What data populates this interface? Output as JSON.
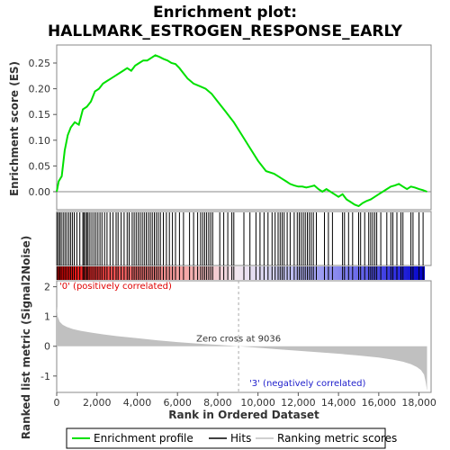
{
  "chart_data": {
    "type": "line",
    "title_line1": "Enrichment plot:",
    "title_line2": "HALLMARK_ESTROGEN_RESPONSE_EARLY",
    "xlabel": "Rank in Ordered Dataset",
    "es_ylabel": "Enrichment score (ES)",
    "metric_ylabel": "Ranked list metric (Signal2Noise)",
    "x_ticks": [
      0,
      2000,
      4000,
      6000,
      8000,
      10000,
      12000,
      14000,
      16000,
      18000
    ],
    "x_tick_labels": [
      "0",
      "2,000",
      "4,000",
      "6,000",
      "8,000",
      "10,000",
      "12,000",
      "14,000",
      "16,000",
      "18,000"
    ],
    "xlim": [
      0,
      18600
    ],
    "es_ylim": [
      -0.035,
      0.285
    ],
    "es_ticks": [
      0.0,
      0.05,
      0.1,
      0.15,
      0.2,
      0.25
    ],
    "es_tick_labels": [
      "0.00",
      "0.05",
      "0.10",
      "0.15",
      "0.20",
      "0.25"
    ],
    "metric_ylim": [
      -1.55,
      2.2
    ],
    "metric_ticks": [
      -1,
      0,
      1,
      2
    ],
    "metric_tick_labels": [
      "-1",
      "0",
      "1",
      "2"
    ],
    "dataset_size": 18400,
    "zero_cross": 9036,
    "annotations": {
      "positive": "'0' (positively correlated)",
      "negative": "'3' (negatively correlated)",
      "zero_cross": "Zero cross at 9036"
    },
    "legend": [
      "Enrichment profile",
      "Hits",
      "Ranking metric scores"
    ],
    "series": [
      {
        "name": "Enrichment profile",
        "color": "#00e000",
        "x": [
          0,
          100,
          250,
          400,
          550,
          700,
          900,
          1100,
          1300,
          1500,
          1700,
          1900,
          2100,
          2300,
          2500,
          2700,
          2900,
          3100,
          3300,
          3500,
          3700,
          3900,
          4100,
          4300,
          4500,
          4700,
          4900,
          5100,
          5300,
          5500,
          5700,
          5900,
          6100,
          6300,
          6500,
          6800,
          7100,
          7400,
          7700,
          8000,
          8400,
          8800,
          9200,
          9600,
          10000,
          10400,
          10800,
          11000,
          11200,
          11400,
          11600,
          11800,
          12000,
          12200,
          12400,
          12600,
          12800,
          13000,
          13200,
          13400,
          13600,
          13800,
          14000,
          14200,
          14400,
          14600,
          14800,
          15000,
          15200,
          15400,
          15600,
          15800,
          16000,
          16200,
          16400,
          16600,
          16800,
          17000,
          17200,
          17400,
          17600,
          17800,
          18000,
          18200,
          18400
        ],
        "y": [
          0.0,
          0.02,
          0.03,
          0.08,
          0.11,
          0.125,
          0.135,
          0.13,
          0.16,
          0.165,
          0.175,
          0.195,
          0.2,
          0.21,
          0.215,
          0.22,
          0.225,
          0.23,
          0.235,
          0.24,
          0.235,
          0.245,
          0.25,
          0.255,
          0.255,
          0.26,
          0.265,
          0.262,
          0.258,
          0.255,
          0.25,
          0.248,
          0.24,
          0.23,
          0.22,
          0.21,
          0.205,
          0.2,
          0.19,
          0.175,
          0.155,
          0.135,
          0.11,
          0.085,
          0.06,
          0.04,
          0.035,
          0.03,
          0.025,
          0.02,
          0.015,
          0.012,
          0.01,
          0.01,
          0.008,
          0.01,
          0.012,
          0.005,
          0.0,
          0.005,
          0.0,
          -0.005,
          -0.01,
          -0.005,
          -0.015,
          -0.02,
          -0.025,
          -0.028,
          -0.022,
          -0.018,
          -0.015,
          -0.01,
          -0.005,
          0.0,
          0.005,
          0.01,
          0.012,
          0.015,
          0.01,
          0.005,
          0.01,
          0.008,
          0.005,
          0.003,
          0.0
        ]
      },
      {
        "name": "Ranking metric scores",
        "color": "#c0c0c0",
        "x": [
          0,
          50,
          150,
          300,
          500,
          800,
          1200,
          1700,
          2300,
          3000,
          4000,
          5000,
          6000,
          7000,
          8000,
          9036,
          10000,
          11000,
          12000,
          13000,
          14000,
          15000,
          16000,
          16700,
          17200,
          17600,
          17900,
          18100,
          18250,
          18330,
          18400
        ],
        "y": [
          1.35,
          1.0,
          0.82,
          0.72,
          0.65,
          0.58,
          0.52,
          0.46,
          0.4,
          0.34,
          0.27,
          0.2,
          0.14,
          0.09,
          0.05,
          0.0,
          -0.05,
          -0.1,
          -0.15,
          -0.2,
          -0.25,
          -0.31,
          -0.38,
          -0.45,
          -0.52,
          -0.6,
          -0.7,
          -0.8,
          -0.95,
          -1.2,
          -1.5
        ]
      }
    ],
    "hits": [
      10,
      80,
      150,
      230,
      320,
      410,
      500,
      600,
      690,
      780,
      870,
      1000,
      1150,
      1300,
      1350,
      1420,
      1500,
      1560,
      1650,
      1750,
      1850,
      1950,
      2050,
      2150,
      2250,
      2380,
      2500,
      2650,
      2800,
      2950,
      3050,
      3200,
      3350,
      3500,
      3600,
      3750,
      3850,
      3950,
      4050,
      4150,
      4250,
      4350,
      4450,
      4550,
      4650,
      4750,
      4850,
      4950,
      5050,
      5150,
      5300,
      5450,
      5600,
      5750,
      5900,
      6100,
      6300,
      6600,
      6800,
      7000,
      7150,
      7250,
      7350,
      7450,
      7550,
      7650,
      7750,
      8100,
      8300,
      8500,
      8700,
      8800,
      9300,
      9600,
      9900,
      10100,
      10300,
      10500,
      10700,
      10850,
      11000,
      11100,
      11200,
      11300,
      11450,
      11600,
      11800,
      11950,
      12050,
      12150,
      12250,
      12350,
      12450,
      12550,
      12650,
      12750,
      12900,
      13300,
      13500,
      13700,
      14200,
      14300,
      14500,
      14700,
      15000,
      15100,
      15300,
      15500,
      15600,
      15700,
      15800,
      15900,
      16100,
      16400,
      16600,
      16700,
      16900,
      17100,
      17200,
      17600,
      17700,
      18000,
      18200
    ]
  }
}
